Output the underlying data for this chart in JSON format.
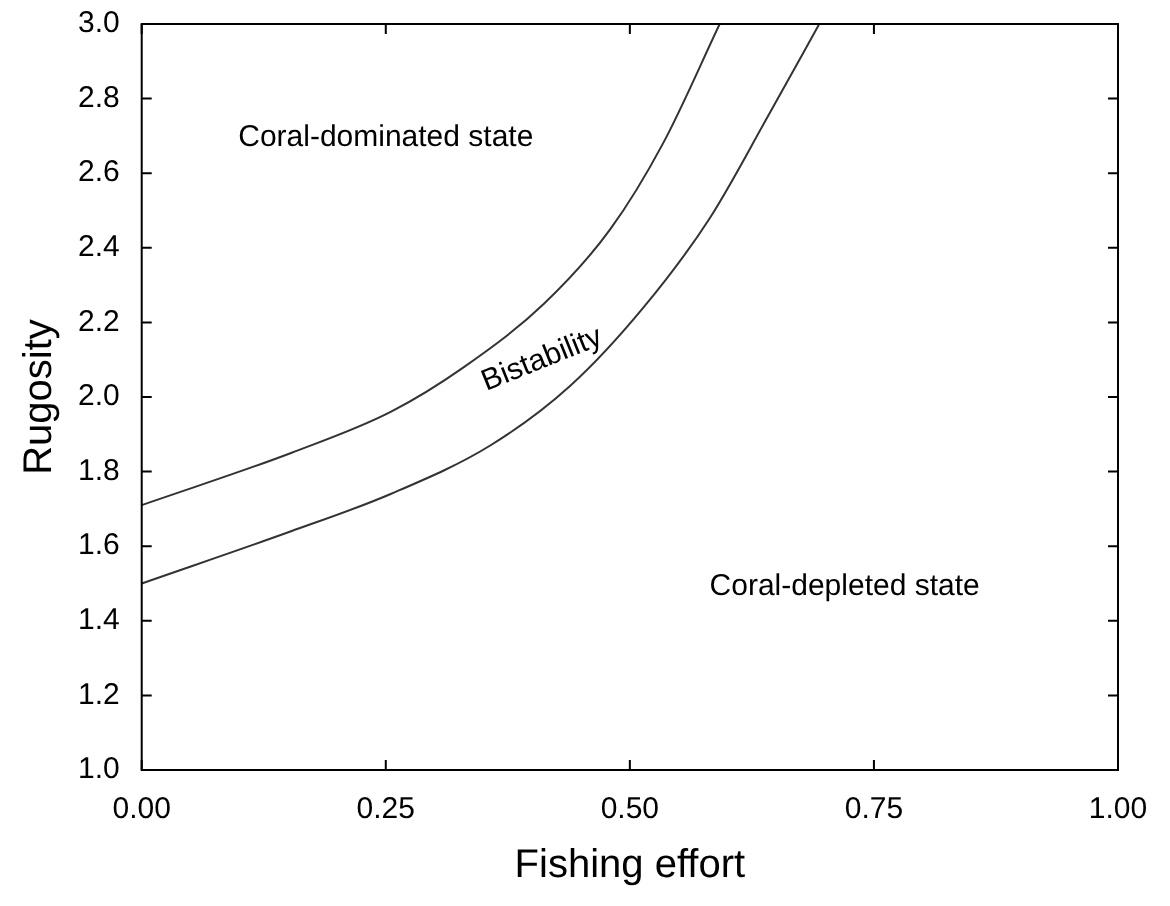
{
  "chart_data": {
    "type": "line",
    "xlabel": "Fishing effort",
    "ylabel": "Rugosity",
    "xlim": [
      0,
      1
    ],
    "xticks": [
      {
        "value": 0,
        "label": "0.00"
      },
      {
        "value": 0.25,
        "label": "0.25"
      },
      {
        "value": 0.5,
        "label": "0.50"
      },
      {
        "value": 0.75,
        "label": "0.75"
      },
      {
        "value": 1,
        "label": "1.00"
      }
    ],
    "ylim": [
      1,
      3
    ],
    "yticks": [
      {
        "value": 1,
        "label": "1.0"
      },
      {
        "value": 1.2,
        "label": "1.2"
      },
      {
        "value": 1.4,
        "label": "1.4"
      },
      {
        "value": 1.6,
        "label": "1.6"
      },
      {
        "value": 1.8,
        "label": "1.8"
      },
      {
        "value": 2,
        "label": "2.0"
      },
      {
        "value": 2.2,
        "label": "2.2"
      },
      {
        "value": 2.4,
        "label": "2.4"
      },
      {
        "value": 2.6,
        "label": "2.6"
      },
      {
        "value": 2.8,
        "label": "2.8"
      },
      {
        "value": 3,
        "label": "3.0"
      }
    ],
    "grid": false,
    "legend": false,
    "marker": "none",
    "line_style": "solid",
    "series": [
      {
        "color": "#333333",
        "x": [
          0,
          0.153,
          0.255,
          0.33,
          0.412,
          0.48,
          0.534,
          0.592
        ],
        "values": [
          1.71,
          1.85,
          1.96,
          2.08,
          2.25,
          2.45,
          2.68,
          3.0
        ]
      },
      {
        "color": "#333333",
        "x": [
          0,
          0.153,
          0.255,
          0.357,
          0.439,
          0.514,
          0.582,
          0.643,
          0.694
        ],
        "values": [
          1.5,
          1.64,
          1.74,
          1.87,
          2.03,
          2.24,
          2.48,
          2.76,
          3.0
        ]
      }
    ],
    "annotations": [
      "Coral-dominated state",
      "Bistability",
      "Coral-depleted state"
    ]
  }
}
